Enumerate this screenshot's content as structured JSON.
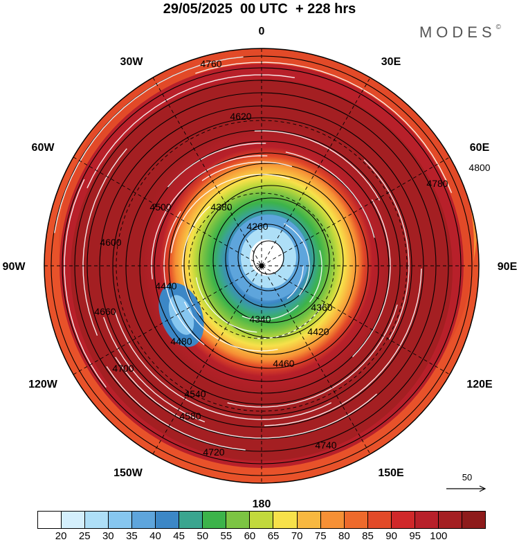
{
  "title": "29/05/2025  00 UTC  + 228 hrs",
  "brand": {
    "name": "MODES",
    "mark": "©"
  },
  "longitude_labels": [
    {
      "id": "0",
      "text": "0"
    },
    {
      "id": "30e",
      "text": "30E"
    },
    {
      "id": "60e",
      "text": "60E"
    },
    {
      "id": "90e",
      "text": "90E"
    },
    {
      "id": "120e",
      "text": "120E"
    },
    {
      "id": "150e",
      "text": "150E"
    },
    {
      "id": "180",
      "text": "180"
    },
    {
      "id": "150w",
      "text": "150W"
    },
    {
      "id": "120w",
      "text": "120W"
    },
    {
      "id": "90w",
      "text": "90W"
    },
    {
      "id": "60w",
      "text": "60W"
    },
    {
      "id": "30w",
      "text": "30W"
    }
  ],
  "contour_labels": [
    "4260",
    "4340",
    "4420",
    "4500",
    "4540",
    "4580",
    "4600",
    "4620",
    "4660",
    "4700",
    "4720",
    "4740",
    "4760",
    "4780",
    "4800",
    "4380",
    "4360",
    "4440",
    "4460",
    "4480"
  ],
  "wind_reference": {
    "label": "50"
  },
  "colorbar": {
    "colors": [
      "#ffffff",
      "#d4effc",
      "#aedff7",
      "#86c6ef",
      "#5ea5dc",
      "#3c87c6",
      "#3aa58f",
      "#3cb34a",
      "#7cc443",
      "#c2d93c",
      "#f7e14a",
      "#f8b840",
      "#f69035",
      "#ee6a2c",
      "#e24a28",
      "#d0282a",
      "#b8202a",
      "#a41f22",
      "#8e1b1b"
    ],
    "labels": [
      "20",
      "25",
      "30",
      "35",
      "40",
      "45",
      "50",
      "55",
      "60",
      "65",
      "70",
      "75",
      "80",
      "85",
      "90",
      "95",
      "100"
    ]
  }
}
